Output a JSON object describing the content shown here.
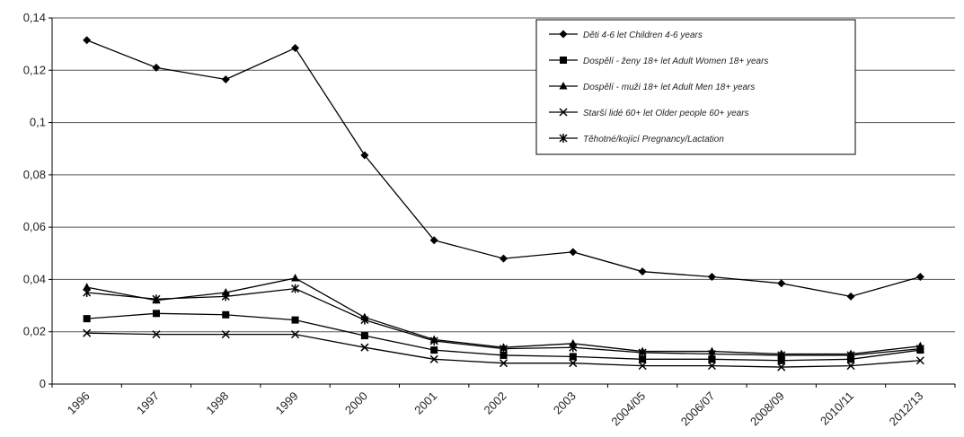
{
  "chart_data": {
    "type": "line",
    "title": "",
    "xlabel": "",
    "ylabel": "",
    "ylim": [
      0,
      0.14
    ],
    "y_ticks": [
      0,
      0.02,
      0.04,
      0.06,
      0.08,
      0.1,
      0.12,
      0.14
    ],
    "y_tick_labels": [
      "0",
      "0,02",
      "0,04",
      "0,06",
      "0,08",
      "0,1",
      "0,12",
      "0,14"
    ],
    "grid": "horizontal",
    "legend_position": "top-right",
    "categories": [
      "1996",
      "1997",
      "1998",
      "1999",
      "2000",
      "2001",
      "2002",
      "2003",
      "2004/05",
      "2006/07",
      "2008/09",
      "2010/11",
      "2012/13"
    ],
    "series": [
      {
        "name": "Děti 4-6 let    Children 4-6 years",
        "marker": "diamond",
        "color": "#000000",
        "values": [
          0.1315,
          0.121,
          0.1165,
          0.1285,
          0.0875,
          0.055,
          0.048,
          0.0505,
          0.043,
          0.041,
          0.0385,
          0.0335,
          0.041
        ]
      },
      {
        "name": "Dospělí - ženy 18+ let    Adult Women 18+ years",
        "marker": "square",
        "color": "#000000",
        "values": [
          0.025,
          0.027,
          0.0265,
          0.0245,
          0.0185,
          0.013,
          0.011,
          0.0105,
          0.0095,
          0.0095,
          0.009,
          0.0095,
          0.013
        ]
      },
      {
        "name": "Dospělí - muži 18+ let    Adult Men 18+ years",
        "marker": "triangle",
        "color": "#000000",
        "values": [
          0.037,
          0.032,
          0.035,
          0.0405,
          0.0255,
          0.017,
          0.014,
          0.0155,
          0.0125,
          0.0125,
          0.0115,
          0.0115,
          0.0145
        ]
      },
      {
        "name": "Starší lidé 60+ let    Older people 60+ years",
        "marker": "x",
        "color": "#000000",
        "values": [
          0.0195,
          0.019,
          0.019,
          0.019,
          0.014,
          0.0095,
          0.008,
          0.008,
          0.007,
          0.007,
          0.0065,
          0.007,
          0.009
        ]
      },
      {
        "name": "Těhotné/kojící    Pregnancy/Lactation",
        "marker": "star",
        "color": "#000000",
        "values": [
          0.035,
          0.0325,
          0.0335,
          0.0365,
          0.0245,
          0.0165,
          0.0135,
          0.014,
          0.012,
          0.0115,
          0.011,
          0.011,
          0.0135
        ]
      }
    ]
  }
}
